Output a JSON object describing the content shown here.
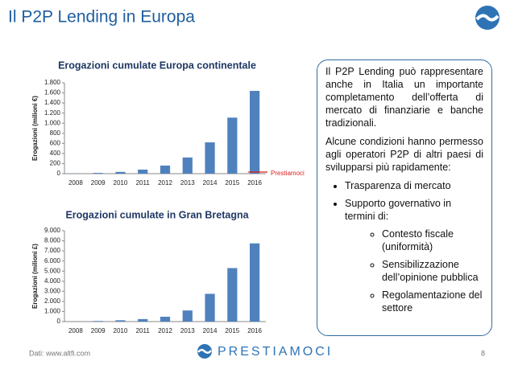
{
  "header": {
    "title": "Il P2P Lending in Europa"
  },
  "chart_data": [
    {
      "type": "bar",
      "title": "Erogazioni cumulate Europa continentale",
      "y_label": "Erogazioni (milioni €)",
      "categories": [
        "2008",
        "2009",
        "2010",
        "2011",
        "2012",
        "2013",
        "2014",
        "2015",
        "2016"
      ],
      "values": [
        5,
        15,
        35,
        80,
        160,
        320,
        620,
        1110,
        1640
      ],
      "color": "#4f81bd",
      "ylim": [
        0,
        1800
      ],
      "yticks": [
        0,
        200,
        400,
        600,
        800,
        {
          "value": 1000,
          "label": "1.000"
        },
        {
          "value": 1200,
          "label": "1.200"
        },
        {
          "value": 1400,
          "label": "1.400"
        },
        {
          "value": 1600,
          "label": "1.600"
        },
        {
          "value": 1800,
          "label": "1.800"
        }
      ],
      "annotation": "Prestiamoci",
      "annotation_color": "#e02020"
    },
    {
      "type": "bar",
      "title": "Erogazioni cumulate in Gran Bretagna",
      "y_label": "Erogazioni (milioni £)",
      "categories": [
        "2008",
        "2009",
        "2010",
        "2011",
        "2012",
        "2013",
        "2014",
        "2015",
        "2016"
      ],
      "values": [
        10,
        60,
        130,
        250,
        480,
        1100,
        2750,
        5300,
        7750
      ],
      "color": "#4f81bd",
      "ylim": [
        0,
        9000
      ],
      "yticks": [
        0,
        {
          "value": 1000,
          "label": "1.000"
        },
        {
          "value": 2000,
          "label": "2.000"
        },
        {
          "value": 3000,
          "label": "3.000"
        },
        {
          "value": 4000,
          "label": "4.000"
        },
        {
          "value": 5000,
          "label": "5.000"
        },
        {
          "value": 6000,
          "label": "6.000"
        },
        {
          "value": 7000,
          "label": "7.000"
        },
        {
          "value": 8000,
          "label": "8.000"
        },
        {
          "value": 9000,
          "label": "9.000"
        }
      ]
    }
  ],
  "textbox": {
    "paragraphs": [
      "Il P2P Lending può rappresentare anche in Italia un importante completamento dell’offerta di mercato di finanziarie e banche tradizionali.",
      "Alcune condizioni hanno permesso agli operatori P2P di altri paesi di svilupparsi più rapidamente:"
    ],
    "bullets": [
      "Trasparenza di mercato",
      "Supporto governativo in termini di:"
    ],
    "sub_bullets": [
      "Contesto fiscale (uniformità)",
      "Sensibilizzazione dell’opinione pubblica",
      "Regolamentazione del settore"
    ]
  },
  "footer": {
    "source": "Dati: www.altfi.com",
    "logo": "PRESTIAMOCI",
    "page": "8"
  }
}
